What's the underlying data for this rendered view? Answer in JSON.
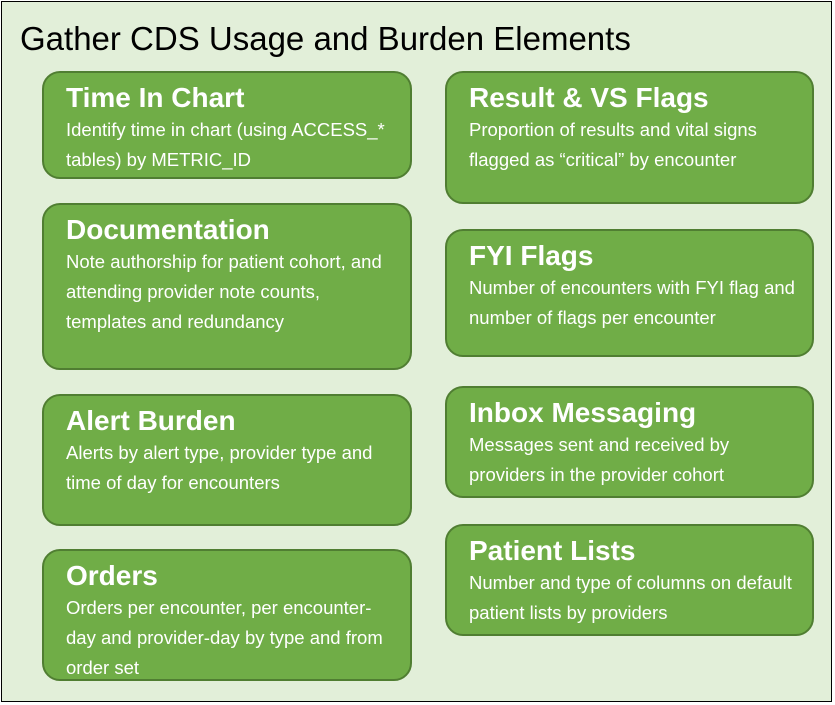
{
  "title": "Gather CDS Usage and Burden Elements",
  "colors": {
    "background": "#e2efd9",
    "box_fill": "#70ad47",
    "box_border": "#507e32",
    "box_text": "#ffffff"
  },
  "boxes": {
    "time_in_chart": {
      "heading": "Time In Chart",
      "text": "Identify time in chart (using ACCESS_* tables) by METRIC_ID"
    },
    "documentation": {
      "heading": "Documentation",
      "text": "Note authorship for patient cohort, and attending provider note counts, templates and redundancy"
    },
    "alert_burden": {
      "heading": "Alert Burden",
      "text": "Alerts by alert type, provider type and time of day for encounters"
    },
    "orders": {
      "heading": "Orders",
      "text": "Orders per encounter, per encounter-day and provider-day by type and from order set"
    },
    "result_vs_flags": {
      "heading": "Result & VS Flags",
      "text": "Proportion of results and vital signs flagged as “critical” by encounter"
    },
    "fyi_flags": {
      "heading": "FYI Flags",
      "text": "Number of encounters with FYI flag and number of flags per encounter"
    },
    "inbox_messaging": {
      "heading": "Inbox Messaging",
      "text": "Messages sent and received by providers in the provider cohort"
    },
    "patient_lists": {
      "heading": "Patient Lists",
      "text": "Number and type of columns on default patient lists by providers"
    }
  }
}
